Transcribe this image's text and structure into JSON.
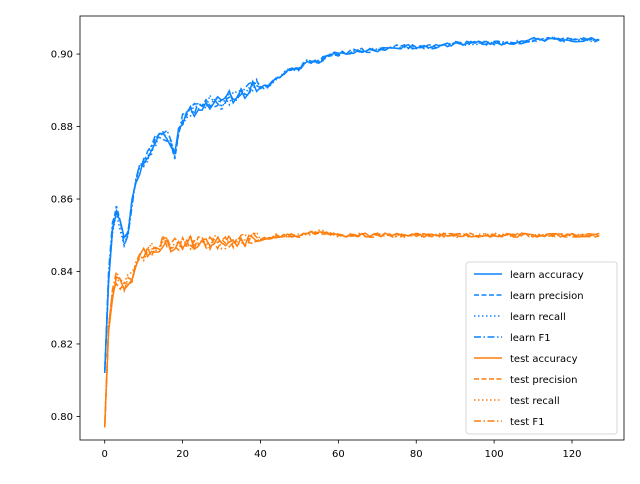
{
  "chart_data": {
    "type": "line",
    "title": "",
    "xlabel": "",
    "ylabel": "",
    "xlim": [
      -6.35,
      133.35
    ],
    "ylim": [
      0.7935,
      0.9105
    ],
    "xticks": [
      0,
      20,
      40,
      60,
      80,
      100,
      120
    ],
    "yticks": [
      0.8,
      0.82,
      0.84,
      0.86,
      0.88,
      0.9
    ],
    "ytick_labels": [
      "0.80",
      "0.82",
      "0.84",
      "0.86",
      "0.88",
      "0.90"
    ],
    "grid": false,
    "legend_position": "lower-right",
    "colors": {
      "learn": "#0a84ff",
      "test": "#ff7f0e"
    },
    "anchors": {
      "learn": [
        [
          0,
          0.812
        ],
        [
          1,
          0.838
        ],
        [
          2,
          0.852
        ],
        [
          3,
          0.858
        ],
        [
          5,
          0.848
        ],
        [
          6,
          0.852
        ],
        [
          8,
          0.866
        ],
        [
          10,
          0.87
        ],
        [
          12,
          0.874
        ],
        [
          14,
          0.878
        ],
        [
          16,
          0.877
        ],
        [
          18,
          0.872
        ],
        [
          19,
          0.88
        ],
        [
          20,
          0.882
        ],
        [
          22,
          0.884
        ],
        [
          25,
          0.886
        ],
        [
          28,
          0.887
        ],
        [
          30,
          0.886
        ],
        [
          32,
          0.888
        ],
        [
          35,
          0.889
        ],
        [
          38,
          0.891
        ],
        [
          40,
          0.891
        ],
        [
          42,
          0.891
        ],
        [
          45,
          0.894
        ],
        [
          48,
          0.896
        ],
        [
          50,
          0.896
        ],
        [
          52,
          0.898
        ],
        [
          55,
          0.898
        ],
        [
          58,
          0.9
        ],
        [
          60,
          0.9
        ],
        [
          65,
          0.901
        ],
        [
          70,
          0.901
        ],
        [
          75,
          0.902
        ],
        [
          80,
          0.902
        ],
        [
          85,
          0.902
        ],
        [
          90,
          0.903
        ],
        [
          95,
          0.903
        ],
        [
          100,
          0.903
        ],
        [
          105,
          0.903
        ],
        [
          110,
          0.904
        ],
        [
          115,
          0.904
        ],
        [
          120,
          0.904
        ],
        [
          127,
          0.904
        ]
      ],
      "test": [
        [
          0,
          0.797
        ],
        [
          1,
          0.825
        ],
        [
          2,
          0.834
        ],
        [
          3,
          0.838
        ],
        [
          5,
          0.836
        ],
        [
          7,
          0.839
        ],
        [
          9,
          0.844
        ],
        [
          11,
          0.846
        ],
        [
          13,
          0.846
        ],
        [
          15,
          0.848
        ],
        [
          17,
          0.847
        ],
        [
          20,
          0.848
        ],
        [
          25,
          0.848
        ],
        [
          30,
          0.848
        ],
        [
          35,
          0.849
        ],
        [
          40,
          0.849
        ],
        [
          45,
          0.85
        ],
        [
          50,
          0.85
        ],
        [
          55,
          0.851
        ],
        [
          60,
          0.85
        ],
        [
          65,
          0.85
        ],
        [
          70,
          0.85
        ],
        [
          75,
          0.85
        ],
        [
          80,
          0.85
        ],
        [
          85,
          0.85
        ],
        [
          90,
          0.85
        ],
        [
          95,
          0.85
        ],
        [
          100,
          0.85
        ],
        [
          110,
          0.85
        ],
        [
          120,
          0.85
        ],
        [
          127,
          0.85
        ]
      ]
    },
    "series": [
      {
        "name": "learn accuracy",
        "group": "learn",
        "style": "solid",
        "seed": 11
      },
      {
        "name": "learn precision",
        "group": "learn",
        "style": "dashed",
        "seed": 23
      },
      {
        "name": "learn recall",
        "group": "learn",
        "style": "dotted",
        "seed": 37
      },
      {
        "name": "learn F1",
        "group": "learn",
        "style": "dashdot",
        "seed": 41
      },
      {
        "name": "test accuracy",
        "group": "test",
        "style": "solid",
        "seed": 53
      },
      {
        "name": "test precision",
        "group": "test",
        "style": "dashed",
        "seed": 67
      },
      {
        "name": "test recall",
        "group": "test",
        "style": "dotted",
        "seed": 71
      },
      {
        "name": "test F1",
        "group": "test",
        "style": "dashdot",
        "seed": 89
      }
    ]
  }
}
